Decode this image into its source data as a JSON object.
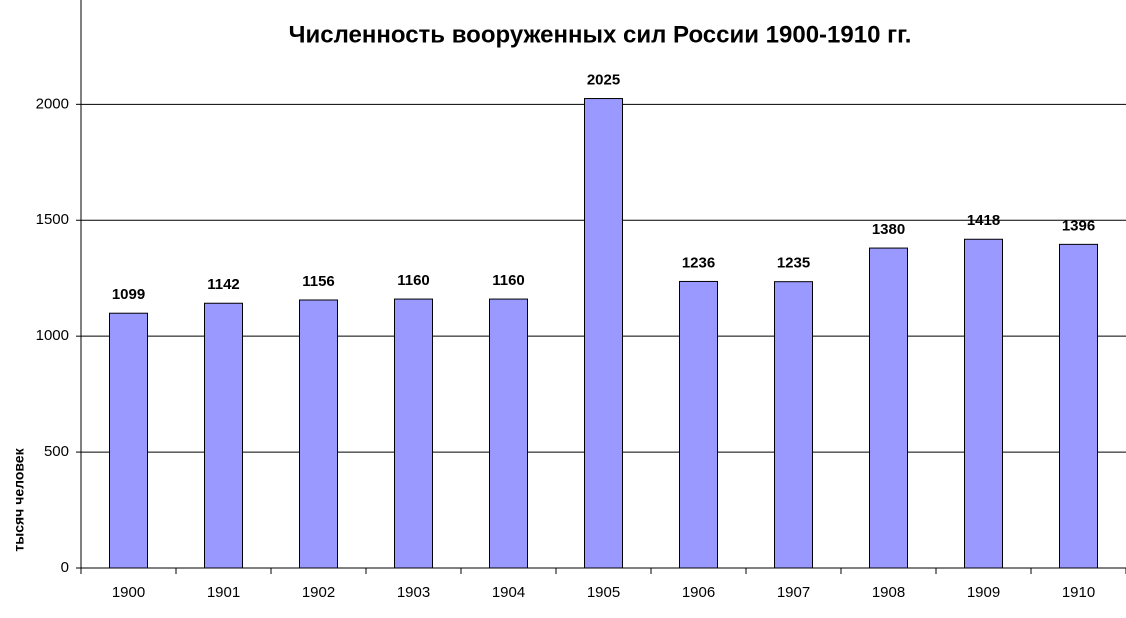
{
  "chart_data": {
    "type": "bar",
    "title": "Численность вооруженных сил России 1900-1910 гг.",
    "y_label": "тысяч человек",
    "categories": [
      "1900",
      "1901",
      "1902",
      "1903",
      "1904",
      "1905",
      "1906",
      "1907",
      "1908",
      "1909",
      "1910"
    ],
    "values": [
      1099,
      1142,
      1156,
      1160,
      1160,
      2025,
      1236,
      1235,
      1380,
      1418,
      1396
    ],
    "color": "#9999ff",
    "ylim": [
      0,
      2450
    ],
    "yticks": [
      0,
      500,
      1000,
      1500,
      2000
    ],
    "grid": true
  }
}
